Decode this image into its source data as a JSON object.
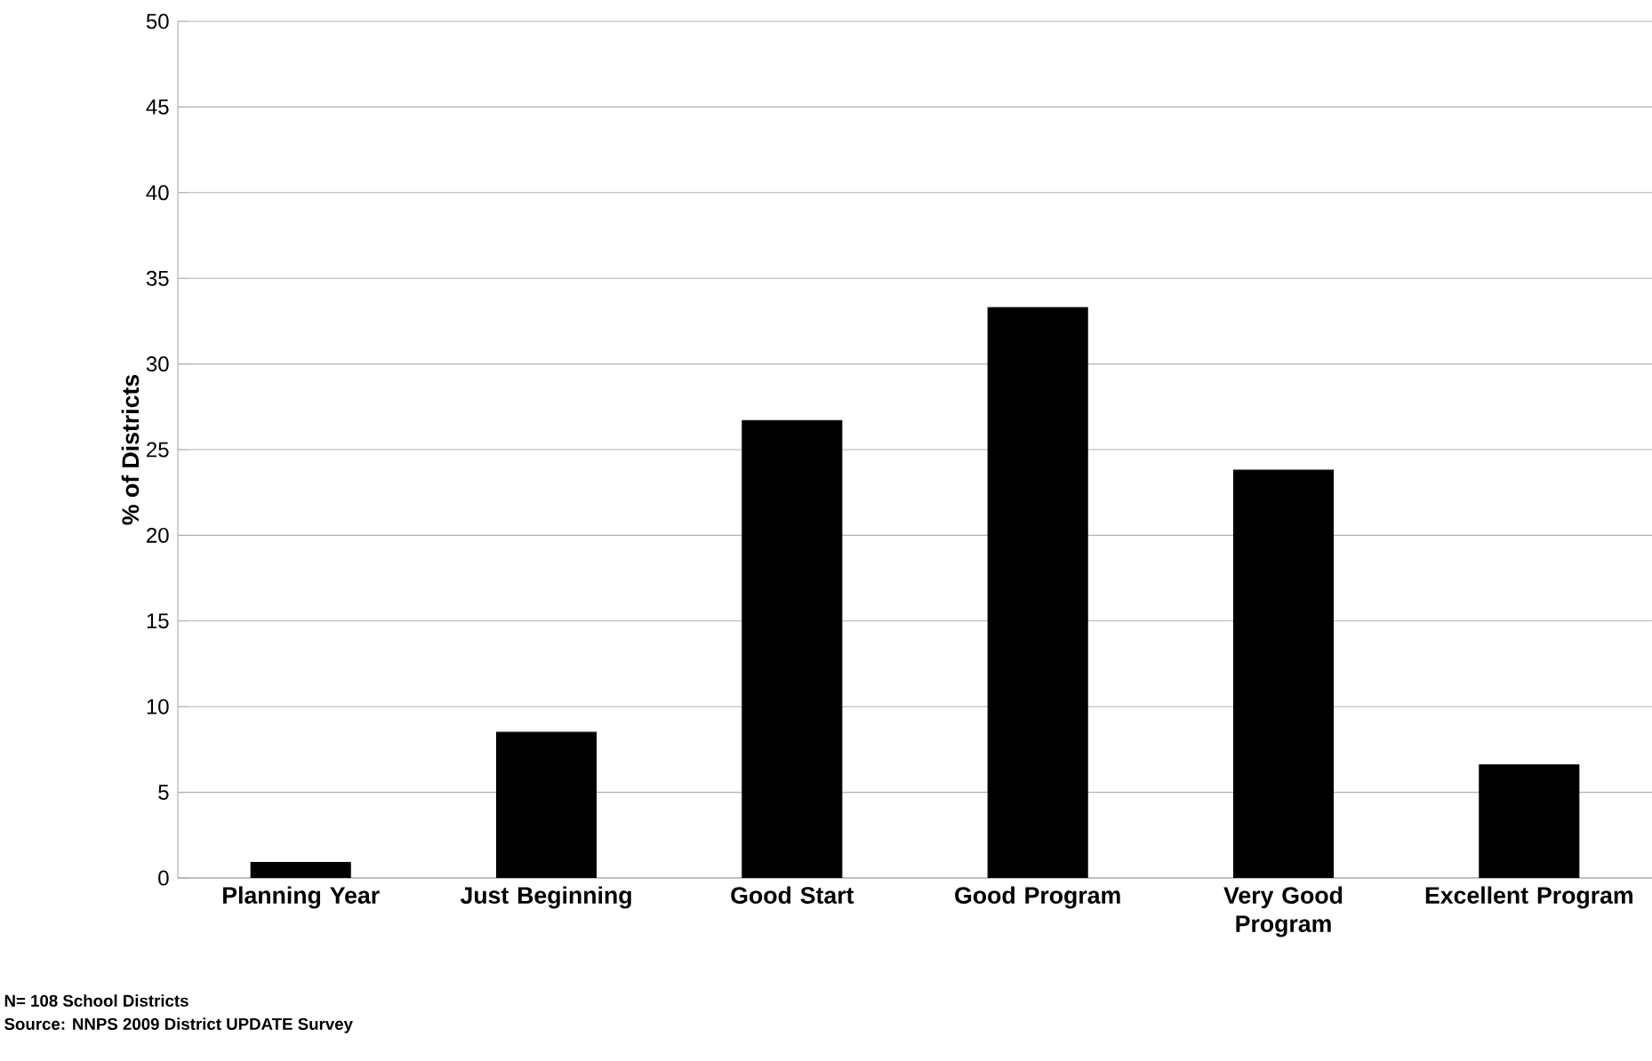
{
  "chart_data": {
    "type": "bar",
    "ylabel": "% of Districts",
    "categories": [
      "Planning Year",
      "Just Beginning",
      "Good Start",
      "Good Program",
      "Very Good Program",
      "Excellent Program"
    ],
    "values": [
      0.9,
      8.5,
      26.7,
      33.3,
      23.8,
      6.6
    ],
    "color": "#000000",
    "ylim": [
      0,
      50
    ],
    "yticks": [
      0,
      5,
      10,
      15,
      20,
      25,
      30,
      35,
      40,
      45,
      50
    ],
    "grid": "y",
    "annotations": [
      "N= 108 School Districts",
      "Source: NNPS 2009 District UPDATE Survey"
    ]
  }
}
